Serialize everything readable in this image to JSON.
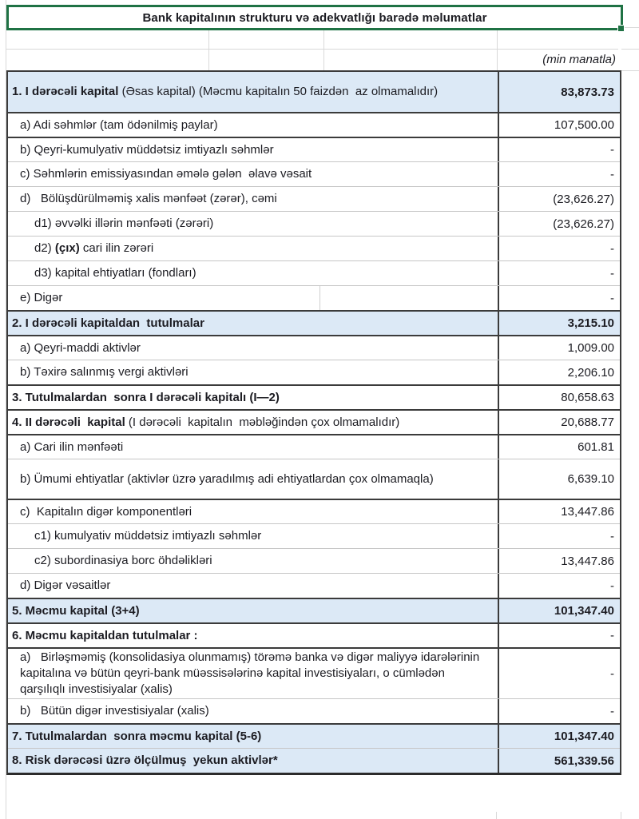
{
  "title": "Bank kapitalının strukturu və adekvatlığı barədə məlumatlar",
  "unit_note": "(min manatla)",
  "colors": {
    "selection_green": "#1f7244",
    "header_fill_blue": "#dce9f6",
    "border_dark": "#3b3b3b",
    "border_light": "#c6c6c6",
    "gridline": "#d9d9d9",
    "text": "#1c1c22"
  },
  "table": {
    "rows": [
      {
        "name": "section-1-header",
        "segments": [
          {
            "t": "1. I dərəcəli kapital",
            "b": true
          },
          {
            "t": " (Əsas kapital) (Məcmu kapitalın 50 faizdən  az olmamalıdır)",
            "b": false
          }
        ],
        "value": "83,873.73",
        "bg": "blue",
        "indent": 0,
        "lines": 2,
        "value_bold": true,
        "sep": "none",
        "divider": false
      },
      {
        "name": "row-1a",
        "segments": [
          {
            "t": "a) Adi səhmlər (tam ödənilmiş paylar)",
            "b": false
          }
        ],
        "value": "107,500.00",
        "bg": "white",
        "indent": 1,
        "lines": 1,
        "value_bold": false,
        "sep": "dark",
        "divider": false
      },
      {
        "name": "row-1b",
        "segments": [
          {
            "t": "b) Qeyri-kumulyativ müddətsiz imtiyazlı səhmlər",
            "b": false
          }
        ],
        "value": "-",
        "bg": "white",
        "indent": 1,
        "lines": 1,
        "value_bold": false,
        "sep": "dark",
        "divider": false
      },
      {
        "name": "row-1c",
        "segments": [
          {
            "t": "c) Səhmlərin emissiyasından əmələ gələn  əlavə vəsait",
            "b": false
          }
        ],
        "value": "-",
        "bg": "white",
        "indent": 1,
        "lines": 1,
        "value_bold": false,
        "sep": "light",
        "divider": false
      },
      {
        "name": "row-1d",
        "segments": [
          {
            "t": "d)   Bölüşdürülməmiş xalis mənfəət (zərər), cəmi",
            "b": false
          }
        ],
        "value": "(23,626.27)",
        "bg": "white",
        "indent": 1,
        "lines": 1,
        "value_bold": false,
        "sep": "light",
        "divider": false
      },
      {
        "name": "row-1d1",
        "segments": [
          {
            "t": "d1) əvvəlki illərin mənfəəti (zərəri)",
            "b": false
          }
        ],
        "value": "(23,626.27)",
        "bg": "white",
        "indent": 2,
        "lines": 1,
        "value_bold": false,
        "sep": "light",
        "divider": false
      },
      {
        "name": "row-1d2",
        "segments": [
          {
            "t": "d2) ",
            "b": false
          },
          {
            "t": "(çıx)",
            "b": true
          },
          {
            "t": " cari ilin zərəri",
            "b": false
          }
        ],
        "value": "-",
        "bg": "white",
        "indent": 2,
        "lines": 1,
        "value_bold": false,
        "sep": "light",
        "divider": false
      },
      {
        "name": "row-1d3",
        "segments": [
          {
            "t": "d3) kapital ehtiyatları (fondları)",
            "b": false
          }
        ],
        "value": "-",
        "bg": "white",
        "indent": 2,
        "lines": 1,
        "value_bold": false,
        "sep": "light",
        "divider": false
      },
      {
        "name": "row-1e",
        "segments": [
          {
            "t": "e) Digər",
            "b": false
          }
        ],
        "value": "-",
        "bg": "white",
        "indent": 1,
        "lines": 1,
        "value_bold": false,
        "sep": "light",
        "divider": true
      },
      {
        "name": "section-2-header",
        "segments": [
          {
            "t": "2. I dərəcəli kapitaldan  tutulmalar",
            "b": true
          }
        ],
        "value": "3,215.10",
        "bg": "blue",
        "indent": 0,
        "lines": 1,
        "value_bold": true,
        "sep": "dark",
        "divider": false
      },
      {
        "name": "row-2a",
        "segments": [
          {
            "t": "a) Qeyri-maddi aktivlər",
            "b": false
          }
        ],
        "value": "1,009.00",
        "bg": "white",
        "indent": 1,
        "lines": 1,
        "value_bold": false,
        "sep": "dark",
        "divider": false
      },
      {
        "name": "row-2b",
        "segments": [
          {
            "t": "b) Təxirə salınmış vergi aktivləri",
            "b": false
          }
        ],
        "value": "2,206.10",
        "bg": "white",
        "indent": 1,
        "lines": 1,
        "value_bold": false,
        "sep": "light",
        "divider": false
      },
      {
        "name": "section-3-header",
        "segments": [
          {
            "t": "3. Tutulmalardan  sonra I dərəcəli kapitalı (I—2)",
            "b": true
          }
        ],
        "value": "80,658.63",
        "bg": "white",
        "indent": 0,
        "lines": 1,
        "value_bold": false,
        "sep": "dark",
        "divider": false
      },
      {
        "name": "section-4-header",
        "segments": [
          {
            "t": "4. II dərəcəli  kapital",
            "b": true
          },
          {
            "t": " (I dərəcəli  kapitalın  məbləğindən çox olmamalıdır)",
            "b": false
          }
        ],
        "value": "20,688.77",
        "bg": "white",
        "indent": 0,
        "lines": 1,
        "value_bold": false,
        "sep": "dark",
        "divider": false
      },
      {
        "name": "row-4a",
        "segments": [
          {
            "t": "a) Cari ilin mənfəəti",
            "b": false
          }
        ],
        "value": "601.81",
        "bg": "white",
        "indent": 1,
        "lines": 1,
        "value_bold": false,
        "sep": "dark",
        "divider": false
      },
      {
        "name": "row-4b",
        "segments": [
          {
            "t": "b) Ümumi ehtiyatlar (aktivlər üzrə yaradılmış adi ehtiyatlardan çox olmamaqla)",
            "b": false
          }
        ],
        "value": "6,639.10",
        "bg": "white",
        "indent": 1,
        "lines": 2,
        "value_bold": false,
        "sep": "light",
        "divider": false
      },
      {
        "name": "row-4c",
        "segments": [
          {
            "t": "c)  Kapitalın digər komponentləri",
            "b": false
          }
        ],
        "value": "13,447.86",
        "bg": "white",
        "indent": 1,
        "lines": 1,
        "value_bold": false,
        "sep": "dark",
        "divider": false
      },
      {
        "name": "row-4c1",
        "segments": [
          {
            "t": "c1) kumulyativ müddətsiz imtiyazlı səhmlər",
            "b": false
          }
        ],
        "value": "-",
        "bg": "white",
        "indent": 2,
        "lines": 1,
        "value_bold": false,
        "sep": "light",
        "divider": false
      },
      {
        "name": "row-4c2",
        "segments": [
          {
            "t": "c2) subordinasiya borc öhdəlikləri",
            "b": false
          }
        ],
        "value": "13,447.86",
        "bg": "white",
        "indent": 2,
        "lines": 1,
        "value_bold": false,
        "sep": "light",
        "divider": false
      },
      {
        "name": "row-4d",
        "segments": [
          {
            "t": "d) Digər vəsaitlər",
            "b": false
          }
        ],
        "value": "-",
        "bg": "white",
        "indent": 1,
        "lines": 1,
        "value_bold": false,
        "sep": "light",
        "divider": false
      },
      {
        "name": "section-5-header",
        "segments": [
          {
            "t": "5. Məcmu kapital (3+4)",
            "b": true
          }
        ],
        "value": "101,347.40",
        "bg": "blue",
        "indent": 0,
        "lines": 1,
        "value_bold": true,
        "sep": "dark",
        "divider": false
      },
      {
        "name": "section-6-header",
        "segments": [
          {
            "t": "6. Məcmu kapitaldan tutulmalar :",
            "b": true
          }
        ],
        "value": "-",
        "bg": "white",
        "indent": 0,
        "lines": 1,
        "value_bold": false,
        "sep": "dark",
        "divider": false
      },
      {
        "name": "row-6a",
        "segments": [
          {
            "t": "a)   Birləşməmiş (konsolidasiya olunmamış) törəmə banka və digər maliyyə idarələrinin kapitalına və bütün qeyri-bank müəssisələrinə kapital investisiyaları, o cümlədən qarşılıqlı investisiyalar (xalis)",
            "b": false
          }
        ],
        "value": "-",
        "bg": "white",
        "indent": 1,
        "lines": 3,
        "value_bold": false,
        "sep": "dark",
        "divider": false
      },
      {
        "name": "row-6b",
        "segments": [
          {
            "t": "b)   Bütün digər investisiyalar (xalis)",
            "b": false
          }
        ],
        "value": "-",
        "bg": "white",
        "indent": 1,
        "lines": 1,
        "value_bold": false,
        "sep": "light",
        "divider": false
      },
      {
        "name": "section-7-header",
        "segments": [
          {
            "t": "7. Tutulmalardan  sonra məcmu kapital (5-6)",
            "b": true
          }
        ],
        "value": "101,347.40",
        "bg": "blue",
        "indent": 0,
        "lines": 1,
        "value_bold": true,
        "sep": "dark",
        "divider": false
      },
      {
        "name": "section-8-header",
        "segments": [
          {
            "t": "8. Risk dərəcəsi üzrə ölçülmuş  yekun aktivlər*",
            "b": true
          }
        ],
        "value": "561,339.56",
        "bg": "blue",
        "indent": 0,
        "lines": 1,
        "value_bold": true,
        "sep": "light",
        "divider": false
      }
    ]
  }
}
